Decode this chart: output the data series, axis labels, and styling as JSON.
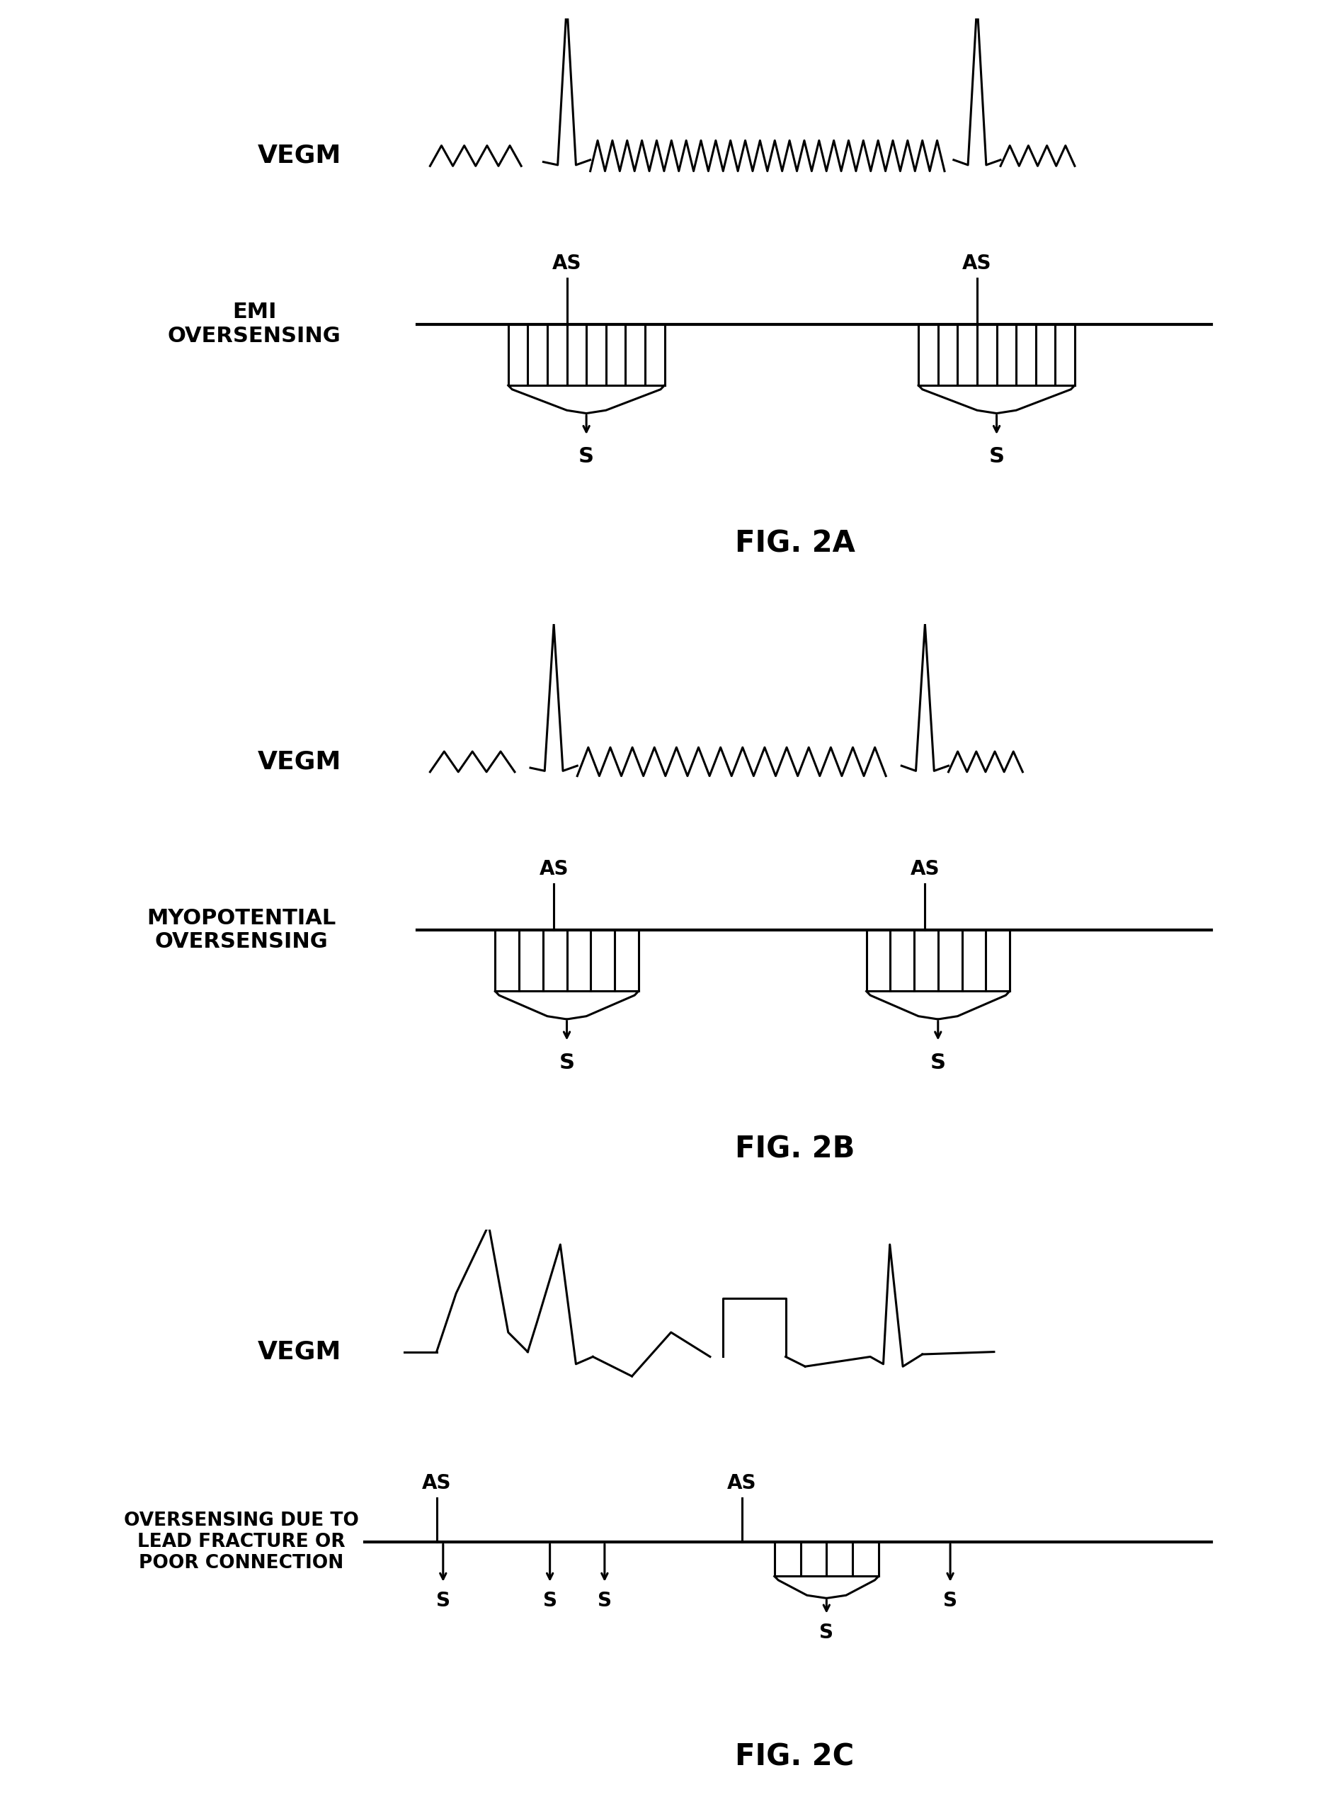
{
  "bg_color": "#ffffff",
  "fig_labels": [
    "FIG. 2A",
    "FIG. 2B",
    "FIG. 2C"
  ],
  "vegm_label": "VEGM",
  "panel_labels_a": [
    "EMI",
    "OVERSENSING"
  ],
  "panel_labels_b": [
    "MYOPOTENTIAL",
    "OVERSENSING"
  ],
  "panel_labels_c": [
    "OVERSENSING DUE TO",
    "LEAD FRACTURE OR",
    "POOR CONNECTION"
  ],
  "as_label": "AS",
  "s_label": "S"
}
